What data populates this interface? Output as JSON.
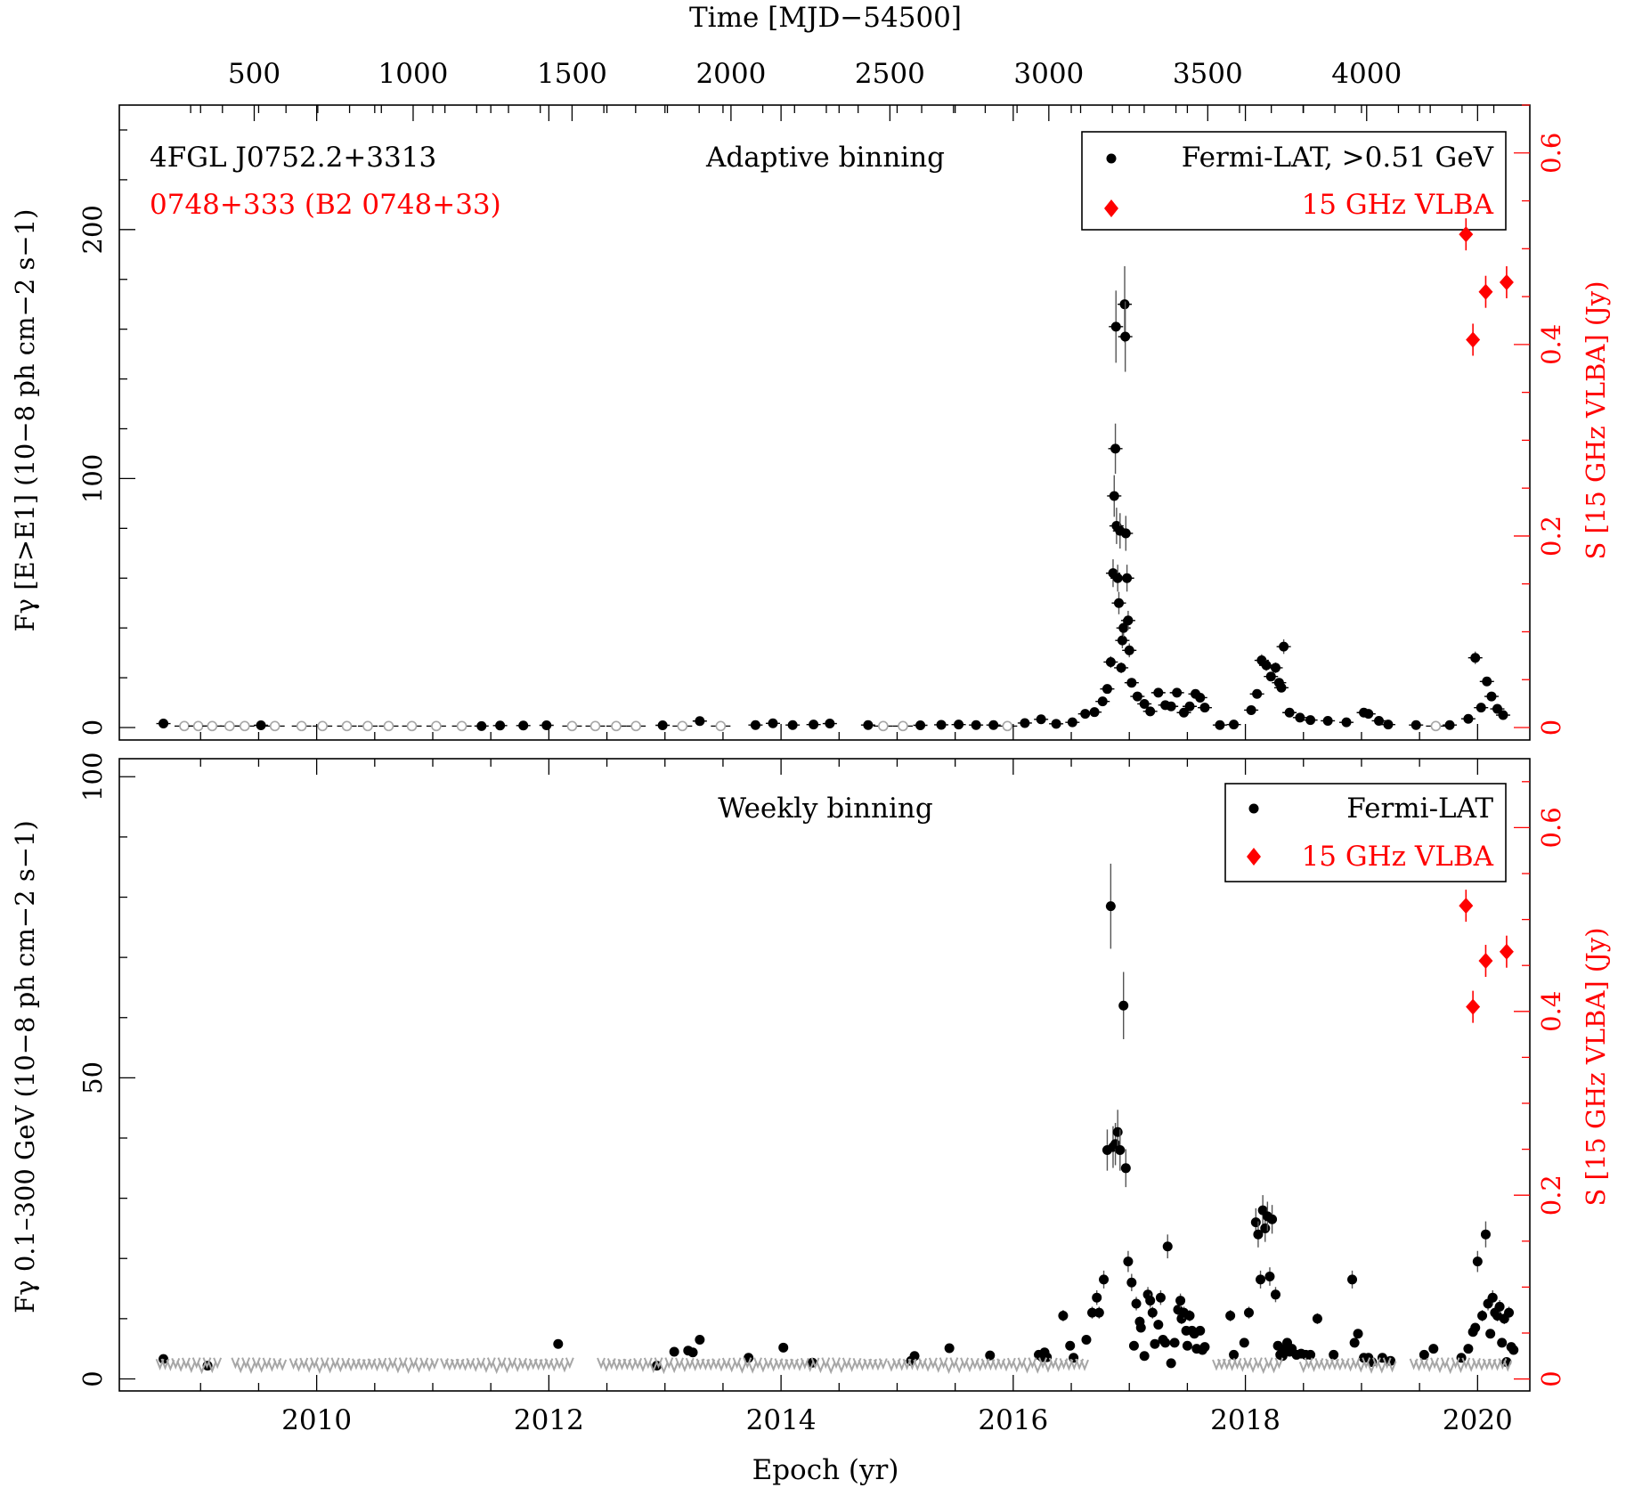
{
  "colors": {
    "gamma": "#000000",
    "ul": "#a6a6a6",
    "vlba": "#ff0000"
  },
  "top_axis": {
    "label": "Time [MJD−54500]",
    "ticks": [
      500,
      1000,
      1500,
      2000,
      2500,
      3000,
      3500,
      4000
    ]
  },
  "bottom_axis": {
    "label": "Epoch (yr)",
    "ticks": [
      2010,
      2012,
      2014,
      2016,
      2018,
      2020
    ]
  },
  "chart_data": [
    {
      "type": "scatter",
      "panel": "top",
      "source_name": "4FGL J0752.2+3313",
      "source_alias": "0748+333 (B2 0748+33)",
      "title": "Adaptive binning",
      "ylabel": "Fγ [E>E1] (10−8 ph cm−2 s−1)",
      "y2label": "S [15 GHz VLBA] (Jy)",
      "xlim": [
        2008.3,
        2020.45
      ],
      "ylim": [
        -5,
        250
      ],
      "y2lim": [
        -0.013,
        0.65
      ],
      "yticks": [
        0,
        100,
        200
      ],
      "y2ticks": [
        0,
        0.2,
        0.4,
        0.6
      ],
      "legend": {
        "position": "top-right",
        "gamma": "Fermi-LAT, >0.51 GeV",
        "radio": "15 GHz VLBA"
      },
      "series": [
        {
          "name": "Fermi-LAT, >0.51 GeV",
          "kind": "detection",
          "points": [
            [
              2008.68,
              1.6
            ],
            [
              2009.52,
              0.9
            ],
            [
              2011.42,
              0.6
            ],
            [
              2011.58,
              0.8
            ],
            [
              2011.78,
              0.8
            ],
            [
              2011.98,
              0.9
            ],
            [
              2012.98,
              0.9
            ],
            [
              2013.3,
              2.6
            ],
            [
              2013.78,
              1.0
            ],
            [
              2013.93,
              1.7
            ],
            [
              2014.1,
              1.0
            ],
            [
              2014.28,
              1.2
            ],
            [
              2014.42,
              1.6
            ],
            [
              2014.75,
              1.0
            ],
            [
              2015.2,
              0.9
            ],
            [
              2015.38,
              1.1
            ],
            [
              2015.53,
              1.2
            ],
            [
              2015.68,
              1.0
            ],
            [
              2015.83,
              1.0
            ],
            [
              2016.1,
              1.8
            ],
            [
              2016.24,
              3.3
            ],
            [
              2016.37,
              1.5
            ],
            [
              2016.51,
              2.1
            ],
            [
              2016.62,
              5.5
            ],
            [
              2016.7,
              6.2
            ],
            [
              2016.77,
              10.5
            ],
            [
              2016.81,
              15.5
            ],
            [
              2016.84,
              26.3
            ],
            [
              2016.86,
              62.0
            ],
            [
              2016.87,
              93.0
            ],
            [
              2016.88,
              112.0
            ],
            [
              2016.885,
              161.0
            ],
            [
              2016.89,
              81.0
            ],
            [
              2016.9,
              60.0
            ],
            [
              2016.91,
              50.0
            ],
            [
              2016.92,
              79.0
            ],
            [
              2016.93,
              24.0
            ],
            [
              2016.94,
              35.0
            ],
            [
              2016.95,
              40.0
            ],
            [
              2016.96,
              170.0
            ],
            [
              2016.965,
              157.0
            ],
            [
              2016.97,
              78.0
            ],
            [
              2016.98,
              60.0
            ],
            [
              2016.99,
              43.0
            ],
            [
              2017.0,
              31.0
            ],
            [
              2017.02,
              18.0
            ],
            [
              2017.07,
              12.5
            ],
            [
              2017.13,
              9.5
            ],
            [
              2017.18,
              6.5
            ],
            [
              2017.25,
              14.0
            ],
            [
              2017.31,
              9.0
            ],
            [
              2017.36,
              8.5
            ],
            [
              2017.41,
              14.0
            ],
            [
              2017.47,
              6.0
            ],
            [
              2017.52,
              8.5
            ],
            [
              2017.57,
              13.5
            ],
            [
              2017.61,
              12.0
            ],
            [
              2017.65,
              8.0
            ],
            [
              2017.78,
              1.0
            ],
            [
              2017.9,
              1.2
            ],
            [
              2018.05,
              7.0
            ],
            [
              2018.1,
              13.5
            ],
            [
              2018.14,
              27.0
            ],
            [
              2018.18,
              25.0
            ],
            [
              2018.22,
              20.5
            ],
            [
              2018.26,
              24.0
            ],
            [
              2018.29,
              18.0
            ],
            [
              2018.31,
              16.0
            ],
            [
              2018.33,
              32.5
            ],
            [
              2018.38,
              6.0
            ],
            [
              2018.47,
              4.0
            ],
            [
              2018.56,
              3.0
            ],
            [
              2018.71,
              2.7
            ],
            [
              2018.87,
              2.1
            ],
            [
              2019.02,
              6.0
            ],
            [
              2019.06,
              5.5
            ],
            [
              2019.15,
              2.7
            ],
            [
              2019.23,
              1.2
            ],
            [
              2019.47,
              1.0
            ],
            [
              2019.76,
              1.0
            ],
            [
              2019.92,
              3.5
            ],
            [
              2019.98,
              28.0
            ],
            [
              2020.03,
              8.0
            ],
            [
              2020.08,
              18.5
            ],
            [
              2020.12,
              12.5
            ],
            [
              2020.17,
              7.5
            ],
            [
              2020.22,
              5.0
            ]
          ]
        },
        {
          "name": "",
          "kind": "upper-limit",
          "points": [
            [
              2008.86,
              0.6
            ],
            [
              2008.98,
              0.6
            ],
            [
              2009.1,
              0.6
            ],
            [
              2009.25,
              0.6
            ],
            [
              2009.38,
              0.6
            ],
            [
              2009.64,
              0.6
            ],
            [
              2009.87,
              0.6
            ],
            [
              2010.05,
              0.6
            ],
            [
              2010.26,
              0.6
            ],
            [
              2010.44,
              0.6
            ],
            [
              2010.62,
              0.6
            ],
            [
              2010.82,
              0.6
            ],
            [
              2011.03,
              0.6
            ],
            [
              2011.25,
              0.6
            ],
            [
              2012.2,
              0.6
            ],
            [
              2012.4,
              0.6
            ],
            [
              2012.58,
              0.6
            ],
            [
              2012.75,
              0.6
            ],
            [
              2013.15,
              0.6
            ],
            [
              2013.48,
              0.6
            ],
            [
              2014.88,
              0.6
            ],
            [
              2015.05,
              0.6
            ],
            [
              2015.95,
              0.6
            ],
            [
              2019.64,
              0.6
            ]
          ]
        },
        {
          "name": "15 GHz VLBA",
          "kind": "radio",
          "points": [
            [
              2019.9,
              0.515
            ],
            [
              2019.96,
              0.405
            ],
            [
              2020.07,
              0.455
            ],
            [
              2020.25,
              0.465
            ]
          ]
        }
      ]
    },
    {
      "type": "scatter",
      "panel": "bottom",
      "title": "Weekly binning",
      "ylabel": "Fγ 0.1–300 GeV (10−8 ph cm−2 s−1)",
      "y2label": "S [15 GHz VLBA] (Jy)",
      "xlabel": "Epoch (yr)",
      "xlim": [
        2008.3,
        2020.45
      ],
      "ylim": [
        -2,
        103
      ],
      "y2lim": [
        -0.013,
        0.675
      ],
      "yticks": [
        0,
        50,
        100
      ],
      "y2ticks": [
        0,
        0.2,
        0.4,
        0.6
      ],
      "legend": {
        "position": "top-right",
        "gamma": "Fermi-LAT",
        "radio": "15 GHz VLBA"
      },
      "series": [
        {
          "name": "Fermi-LAT",
          "kind": "detection",
          "points": [
            [
              2008.68,
              3.3
            ],
            [
              2009.06,
              2.2
            ],
            [
              2012.08,
              5.8
            ],
            [
              2012.93,
              2.2
            ],
            [
              2013.08,
              4.5
            ],
            [
              2013.2,
              4.7
            ],
            [
              2013.24,
              4.4
            ],
            [
              2013.3,
              6.5
            ],
            [
              2013.72,
              3.5
            ],
            [
              2014.02,
              5.2
            ],
            [
              2014.27,
              2.7
            ],
            [
              2015.12,
              3.0
            ],
            [
              2015.15,
              3.8
            ],
            [
              2015.45,
              5.1
            ],
            [
              2015.8,
              3.9
            ],
            [
              2016.22,
              4.0
            ],
            [
              2016.25,
              3.6
            ],
            [
              2016.27,
              4.4
            ],
            [
              2016.29,
              3.6
            ],
            [
              2016.43,
              10.5
            ],
            [
              2016.49,
              5.5
            ],
            [
              2016.52,
              3.5
            ],
            [
              2016.63,
              6.5
            ],
            [
              2016.68,
              11.0
            ],
            [
              2016.72,
              13.5
            ],
            [
              2016.74,
              11.0
            ],
            [
              2016.78,
              16.5
            ],
            [
              2016.81,
              38.0
            ],
            [
              2016.84,
              78.5
            ],
            [
              2016.86,
              38.5
            ],
            [
              2016.88,
              39.0
            ],
            [
              2016.9,
              41.0
            ],
            [
              2016.92,
              38.0
            ],
            [
              2016.95,
              62.0
            ],
            [
              2016.97,
              35.0
            ],
            [
              2016.99,
              19.5
            ],
            [
              2017.02,
              16.0
            ],
            [
              2017.04,
              5.5
            ],
            [
              2017.06,
              12.5
            ],
            [
              2017.09,
              9.5
            ],
            [
              2017.1,
              8.5
            ],
            [
              2017.13,
              3.8
            ],
            [
              2017.16,
              14.0
            ],
            [
              2017.18,
              13.0
            ],
            [
              2017.2,
              11.0
            ],
            [
              2017.22,
              5.8
            ],
            [
              2017.25,
              9.0
            ],
            [
              2017.27,
              13.5
            ],
            [
              2017.29,
              6.5
            ],
            [
              2017.31,
              6.0
            ],
            [
              2017.33,
              22.0
            ],
            [
              2017.36,
              2.6
            ],
            [
              2017.39,
              6.0
            ],
            [
              2017.42,
              11.5
            ],
            [
              2017.44,
              13.0
            ],
            [
              2017.45,
              10.0
            ],
            [
              2017.47,
              11.0
            ],
            [
              2017.49,
              8.0
            ],
            [
              2017.5,
              5.5
            ],
            [
              2017.52,
              10.5
            ],
            [
              2017.54,
              8.0
            ],
            [
              2017.56,
              7.5
            ],
            [
              2017.58,
              5.0
            ],
            [
              2017.61,
              8.0
            ],
            [
              2017.63,
              4.8
            ],
            [
              2017.65,
              5.3
            ],
            [
              2017.87,
              10.5
            ],
            [
              2017.9,
              4.0
            ],
            [
              2017.99,
              6.0
            ],
            [
              2018.03,
              11.0
            ],
            [
              2018.09,
              26.0
            ],
            [
              2018.11,
              24.0
            ],
            [
              2018.13,
              16.5
            ],
            [
              2018.15,
              28.0
            ],
            [
              2018.17,
              25.0
            ],
            [
              2018.19,
              27.0
            ],
            [
              2018.21,
              17.0
            ],
            [
              2018.23,
              26.5
            ],
            [
              2018.26,
              14.0
            ],
            [
              2018.28,
              5.5
            ],
            [
              2018.3,
              4.0
            ],
            [
              2018.32,
              3.8
            ],
            [
              2018.34,
              5.0
            ],
            [
              2018.36,
              6.0
            ],
            [
              2018.38,
              4.5
            ],
            [
              2018.4,
              5.0
            ],
            [
              2018.44,
              4.0
            ],
            [
              2018.48,
              4.2
            ],
            [
              2018.52,
              4.0
            ],
            [
              2018.56,
              4.0
            ],
            [
              2018.62,
              10.0
            ],
            [
              2018.76,
              4.0
            ],
            [
              2018.92,
              16.5
            ],
            [
              2018.94,
              6.0
            ],
            [
              2018.97,
              7.5
            ],
            [
              2019.02,
              3.5
            ],
            [
              2019.06,
              3.5
            ],
            [
              2019.09,
              2.8
            ],
            [
              2019.18,
              3.5
            ],
            [
              2019.25,
              3.0
            ],
            [
              2019.54,
              4.0
            ],
            [
              2019.62,
              5.0
            ],
            [
              2019.86,
              3.5
            ],
            [
              2019.92,
              5.0
            ],
            [
              2019.96,
              7.8
            ],
            [
              2019.98,
              8.5
            ],
            [
              2020.0,
              19.5
            ],
            [
              2020.04,
              10.5
            ],
            [
              2020.07,
              24.0
            ],
            [
              2020.09,
              12.5
            ],
            [
              2020.11,
              7.5
            ],
            [
              2020.13,
              13.5
            ],
            [
              2020.15,
              11.0
            ],
            [
              2020.17,
              10.5
            ],
            [
              2020.19,
              12.0
            ],
            [
              2020.21,
              6.0
            ],
            [
              2020.23,
              10.0
            ],
            [
              2020.25,
              2.8
            ],
            [
              2020.27,
              11.0
            ],
            [
              2020.29,
              5.3
            ],
            [
              2020.31,
              4.8
            ]
          ]
        },
        {
          "name": "15 GHz VLBA",
          "kind": "radio",
          "points": [
            [
              2019.9,
              0.515
            ],
            [
              2019.96,
              0.405
            ],
            [
              2020.07,
              0.455
            ],
            [
              2020.25,
              0.465
            ]
          ]
        }
      ]
    }
  ]
}
